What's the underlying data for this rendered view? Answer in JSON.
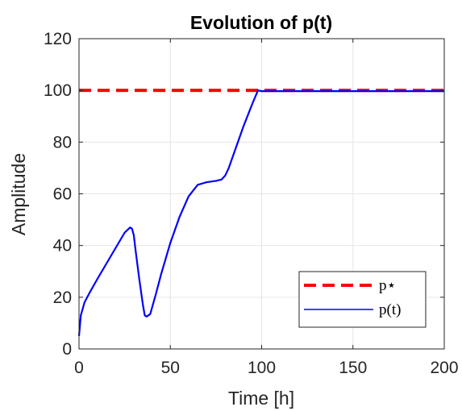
{
  "chart_data": {
    "type": "line",
    "title": "Evolution of p(t)",
    "xlabel": "Time [h]",
    "ylabel": "Amplitude",
    "xlim": [
      0,
      200
    ],
    "ylim": [
      0,
      120
    ],
    "xticks": [
      0,
      50,
      100,
      150,
      200
    ],
    "yticks": [
      0,
      20,
      40,
      60,
      80,
      100,
      120
    ],
    "grid": true,
    "legend_position": "bottom-right",
    "series": [
      {
        "name": "p*",
        "style": "dashed",
        "color": "#ff0000",
        "x": [
          0,
          200
        ],
        "y": [
          100,
          100
        ]
      },
      {
        "name": "p(t)",
        "style": "solid",
        "color": "#0000ff",
        "x": [
          0,
          1,
          3,
          6,
          10,
          15,
          20,
          25,
          28,
          29,
          30,
          31,
          33,
          35,
          36,
          37,
          38,
          39,
          40,
          42,
          45,
          50,
          55,
          60,
          65,
          70,
          75,
          78,
          80,
          82,
          85,
          90,
          95,
          98,
          100,
          120,
          140,
          160,
          180,
          200
        ],
        "y": [
          5,
          13,
          18,
          22,
          27,
          33,
          39,
          45,
          47,
          46.5,
          44,
          38,
          27,
          17,
          13,
          12.5,
          13,
          13.5,
          16,
          21,
          29,
          41,
          51,
          59,
          63.5,
          64.5,
          65,
          65.5,
          67,
          70,
          76,
          86,
          95,
          100,
          99.7,
          99.7,
          99.7,
          99.7,
          99.7,
          99.7
        ]
      }
    ]
  },
  "legend": {
    "items": [
      {
        "label": "p⋆",
        "color": "#ff0000",
        "style": "dashed"
      },
      {
        "label": "p(t)",
        "color": "#0000ff",
        "style": "solid"
      }
    ]
  }
}
